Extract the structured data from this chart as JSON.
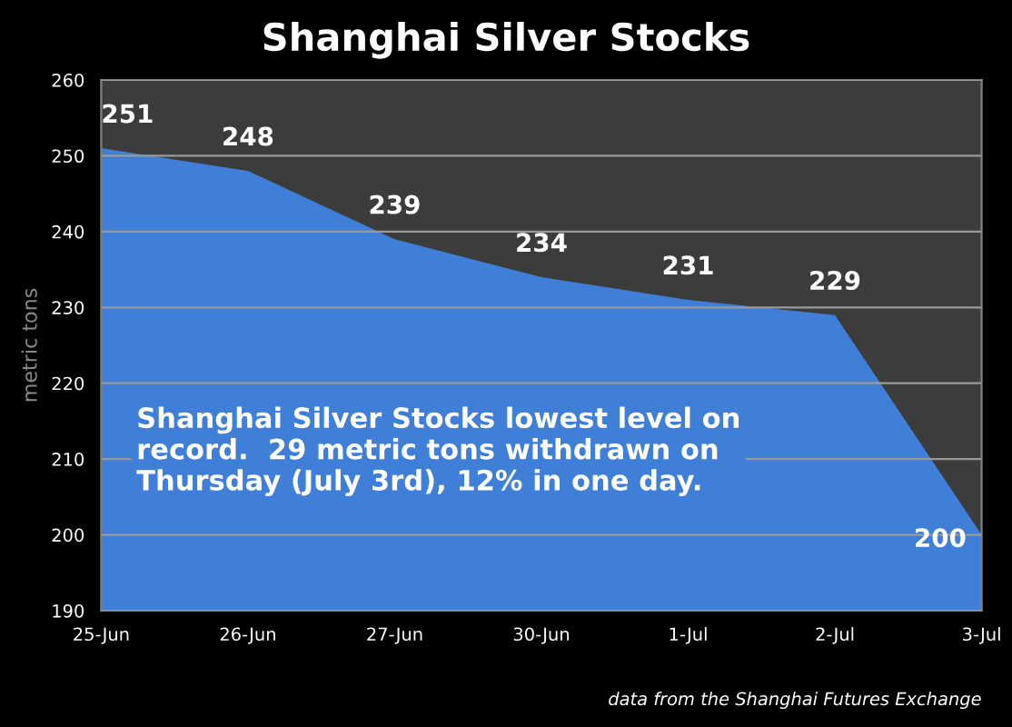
{
  "chart_data": {
    "type": "area",
    "title": "Shanghai Silver Stocks",
    "ylabel": "metric tons",
    "categories": [
      "25-Jun",
      "26-Jun",
      "27-Jun",
      "30-Jun",
      "1-Jul",
      "2-Jul",
      "3-Jul"
    ],
    "series": [
      {
        "color": "#3f7fd8",
        "values": [
          251,
          248,
          239,
          234,
          231,
          229,
          200
        ]
      }
    ],
    "data_labels": true,
    "ylim": [
      190,
      260
    ],
    "yticks": [
      190,
      200,
      210,
      220,
      230,
      240,
      250,
      260
    ],
    "grid": "y",
    "legend": false,
    "annotations": [
      "Shanghai Silver Stocks lowest level on\nrecord.  29 metric tons withdrawn on\nThursday (July 3rd), 12% in one day.",
      "data from the Shanghai Futures Exchange"
    ]
  }
}
